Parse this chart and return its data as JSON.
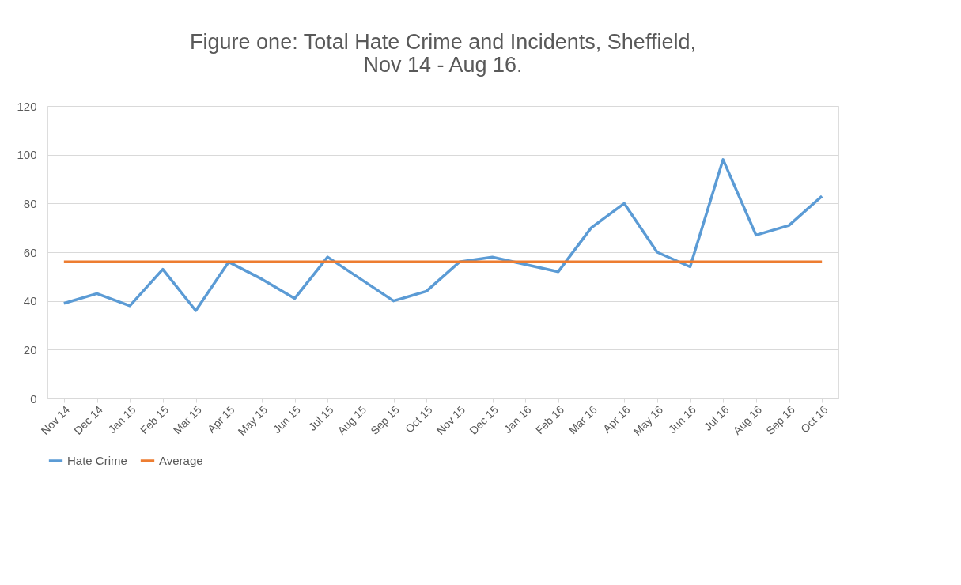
{
  "chart_data": {
    "type": "line",
    "title": "Figure one: Total Hate Crime and Incidents, Sheffield, Nov 14 - Aug 16.",
    "categories": [
      "Nov 14",
      "Dec 14",
      "Jan 15",
      "Feb 15",
      "Mar 15",
      "Apr 15",
      "May 15",
      "Jun 15",
      "Jul 15",
      "Aug 15",
      "Sep 15",
      "Oct 15",
      "Nov 15",
      "Dec 15",
      "Jan 16",
      "Feb 16",
      "Mar 16",
      "Apr 16",
      "May 16",
      "Jun 16",
      "Jul 16",
      "Aug 16",
      "Sep 16",
      "Oct 16"
    ],
    "series": [
      {
        "name": "Hate Crime",
        "color": "#5b9bd5",
        "values": [
          39,
          43,
          38,
          53,
          36,
          56,
          49,
          41,
          58,
          49,
          40,
          44,
          56,
          58,
          55,
          52,
          70,
          80,
          60,
          54,
          98,
          67,
          71,
          83
        ]
      },
      {
        "name": "Average",
        "color": "#ed7d31",
        "values": [
          56,
          56,
          56,
          56,
          56,
          56,
          56,
          56,
          56,
          56,
          56,
          56,
          56,
          56,
          56,
          56,
          56,
          56,
          56,
          56,
          56,
          56,
          56,
          56
        ]
      }
    ],
    "ylim": [
      0,
      120
    ],
    "yticks": [
      0,
      20,
      40,
      60,
      80,
      100,
      120
    ],
    "grid": "y",
    "legend": "bottom",
    "marker": "none",
    "line_style": "solid"
  }
}
